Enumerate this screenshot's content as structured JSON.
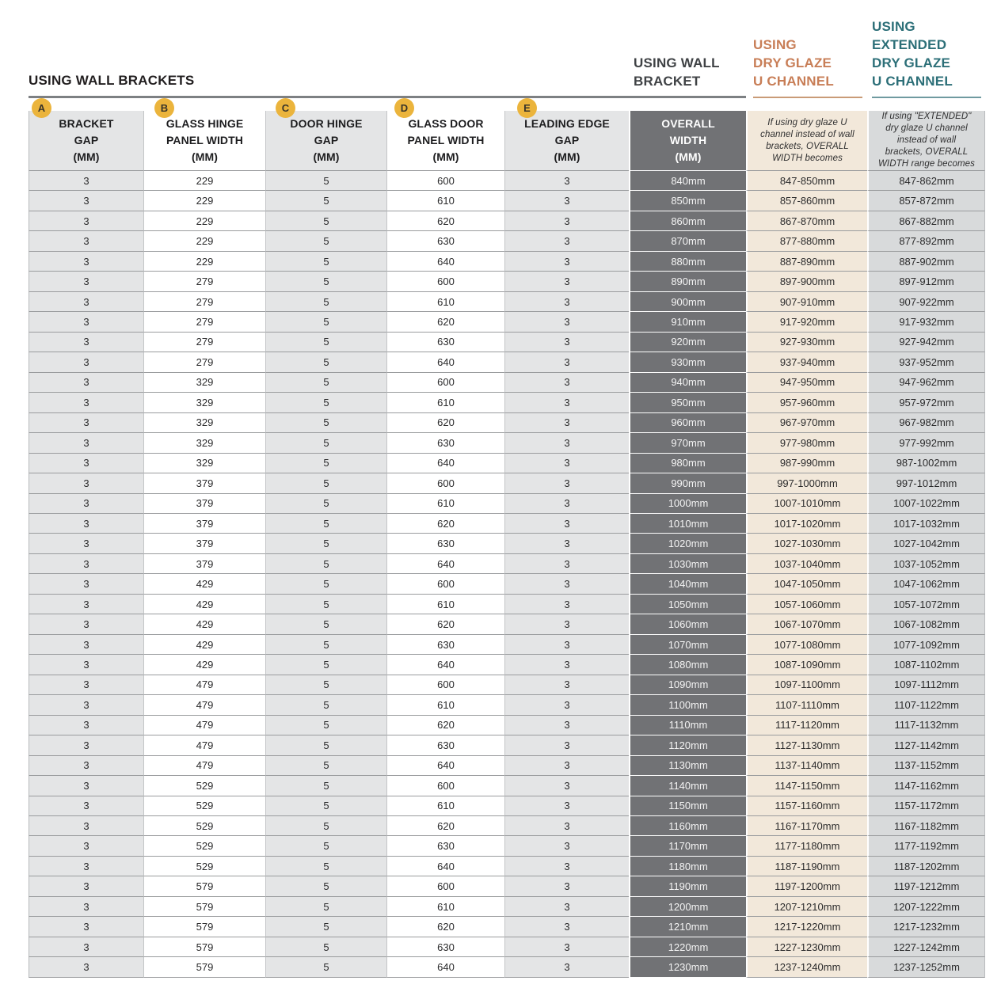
{
  "title": "USING WALL BRACKETS",
  "colors": {
    "accent_orange": "#c87e57",
    "accent_teal": "#2c6f78",
    "wall_bracket_gray": "#3f4245",
    "badge_yellow": "#ebb43c",
    "dark_column_bg": "#717275",
    "cream_column_bg": "#f2e8da",
    "gray_column_bg": "#e4e5e6",
    "extended_column_bg": "#d8dadb"
  },
  "group_headers": [
    {
      "id": "wall_bracket",
      "text": "USING WALL\nBRACKET"
    },
    {
      "id": "dry_glaze",
      "text": "USING\nDRY GLAZE\nU CHANNEL"
    },
    {
      "id": "extended_dry_glaze",
      "text": "USING\nEXTENDED\nDRY GLAZE\nU CHANNEL"
    }
  ],
  "columns": [
    {
      "badge": "A",
      "label": "BRACKET\nGAP\n(MM)"
    },
    {
      "badge": "B",
      "label": "GLASS HINGE\nPANEL WIDTH\n(MM)"
    },
    {
      "badge": "C",
      "label": "DOOR HINGE\nGAP\n(MM)"
    },
    {
      "badge": "D",
      "label": "GLASS DOOR\nPANEL WIDTH\n(MM)"
    },
    {
      "badge": "E",
      "label": "LEADING EDGE\nGAP\n(MM)"
    },
    {
      "label": "OVERALL\nWIDTH\n(MM)"
    },
    {
      "label": "If using dry glaze U channel instead of wall brackets, OVERALL WIDTH becomes"
    },
    {
      "label": "If using \"EXTENDED\" dry glaze U channel instead of wall brackets, OVERALL WIDTH range becomes"
    }
  ],
  "rows": [
    [
      "3",
      "229",
      "5",
      "600",
      "3",
      "840mm",
      "847-850mm",
      "847-862mm"
    ],
    [
      "3",
      "229",
      "5",
      "610",
      "3",
      "850mm",
      "857-860mm",
      "857-872mm"
    ],
    [
      "3",
      "229",
      "5",
      "620",
      "3",
      "860mm",
      "867-870mm",
      "867-882mm"
    ],
    [
      "3",
      "229",
      "5",
      "630",
      "3",
      "870mm",
      "877-880mm",
      "877-892mm"
    ],
    [
      "3",
      "229",
      "5",
      "640",
      "3",
      "880mm",
      "887-890mm",
      "887-902mm"
    ],
    [
      "3",
      "279",
      "5",
      "600",
      "3",
      "890mm",
      "897-900mm",
      "897-912mm"
    ],
    [
      "3",
      "279",
      "5",
      "610",
      "3",
      "900mm",
      "907-910mm",
      "907-922mm"
    ],
    [
      "3",
      "279",
      "5",
      "620",
      "3",
      "910mm",
      "917-920mm",
      "917-932mm"
    ],
    [
      "3",
      "279",
      "5",
      "630",
      "3",
      "920mm",
      "927-930mm",
      "927-942mm"
    ],
    [
      "3",
      "279",
      "5",
      "640",
      "3",
      "930mm",
      "937-940mm",
      "937-952mm"
    ],
    [
      "3",
      "329",
      "5",
      "600",
      "3",
      "940mm",
      "947-950mm",
      "947-962mm"
    ],
    [
      "3",
      "329",
      "5",
      "610",
      "3",
      "950mm",
      "957-960mm",
      "957-972mm"
    ],
    [
      "3",
      "329",
      "5",
      "620",
      "3",
      "960mm",
      "967-970mm",
      "967-982mm"
    ],
    [
      "3",
      "329",
      "5",
      "630",
      "3",
      "970mm",
      "977-980mm",
      "977-992mm"
    ],
    [
      "3",
      "329",
      "5",
      "640",
      "3",
      "980mm",
      "987-990mm",
      "987-1002mm"
    ],
    [
      "3",
      "379",
      "5",
      "600",
      "3",
      "990mm",
      "997-1000mm",
      "997-1012mm"
    ],
    [
      "3",
      "379",
      "5",
      "610",
      "3",
      "1000mm",
      "1007-1010mm",
      "1007-1022mm"
    ],
    [
      "3",
      "379",
      "5",
      "620",
      "3",
      "1010mm",
      "1017-1020mm",
      "1017-1032mm"
    ],
    [
      "3",
      "379",
      "5",
      "630",
      "3",
      "1020mm",
      "1027-1030mm",
      "1027-1042mm"
    ],
    [
      "3",
      "379",
      "5",
      "640",
      "3",
      "1030mm",
      "1037-1040mm",
      "1037-1052mm"
    ],
    [
      "3",
      "429",
      "5",
      "600",
      "3",
      "1040mm",
      "1047-1050mm",
      "1047-1062mm"
    ],
    [
      "3",
      "429",
      "5",
      "610",
      "3",
      "1050mm",
      "1057-1060mm",
      "1057-1072mm"
    ],
    [
      "3",
      "429",
      "5",
      "620",
      "3",
      "1060mm",
      "1067-1070mm",
      "1067-1082mm"
    ],
    [
      "3",
      "429",
      "5",
      "630",
      "3",
      "1070mm",
      "1077-1080mm",
      "1077-1092mm"
    ],
    [
      "3",
      "429",
      "5",
      "640",
      "3",
      "1080mm",
      "1087-1090mm",
      "1087-1102mm"
    ],
    [
      "3",
      "479",
      "5",
      "600",
      "3",
      "1090mm",
      "1097-1100mm",
      "1097-1112mm"
    ],
    [
      "3",
      "479",
      "5",
      "610",
      "3",
      "1100mm",
      "1107-1110mm",
      "1107-1122mm"
    ],
    [
      "3",
      "479",
      "5",
      "620",
      "3",
      "1110mm",
      "1117-1120mm",
      "1117-1132mm"
    ],
    [
      "3",
      "479",
      "5",
      "630",
      "3",
      "1120mm",
      "1127-1130mm",
      "1127-1142mm"
    ],
    [
      "3",
      "479",
      "5",
      "640",
      "3",
      "1130mm",
      "1137-1140mm",
      "1137-1152mm"
    ],
    [
      "3",
      "529",
      "5",
      "600",
      "3",
      "1140mm",
      "1147-1150mm",
      "1147-1162mm"
    ],
    [
      "3",
      "529",
      "5",
      "610",
      "3",
      "1150mm",
      "1157-1160mm",
      "1157-1172mm"
    ],
    [
      "3",
      "529",
      "5",
      "620",
      "3",
      "1160mm",
      "1167-1170mm",
      "1167-1182mm"
    ],
    [
      "3",
      "529",
      "5",
      "630",
      "3",
      "1170mm",
      "1177-1180mm",
      "1177-1192mm"
    ],
    [
      "3",
      "529",
      "5",
      "640",
      "3",
      "1180mm",
      "1187-1190mm",
      "1187-1202mm"
    ],
    [
      "3",
      "579",
      "5",
      "600",
      "3",
      "1190mm",
      "1197-1200mm",
      "1197-1212mm"
    ],
    [
      "3",
      "579",
      "5",
      "610",
      "3",
      "1200mm",
      "1207-1210mm",
      "1207-1222mm"
    ],
    [
      "3",
      "579",
      "5",
      "620",
      "3",
      "1210mm",
      "1217-1220mm",
      "1217-1232mm"
    ],
    [
      "3",
      "579",
      "5",
      "630",
      "3",
      "1220mm",
      "1227-1230mm",
      "1227-1242mm"
    ],
    [
      "3",
      "579",
      "5",
      "640",
      "3",
      "1230mm",
      "1237-1240mm",
      "1237-1252mm"
    ]
  ]
}
